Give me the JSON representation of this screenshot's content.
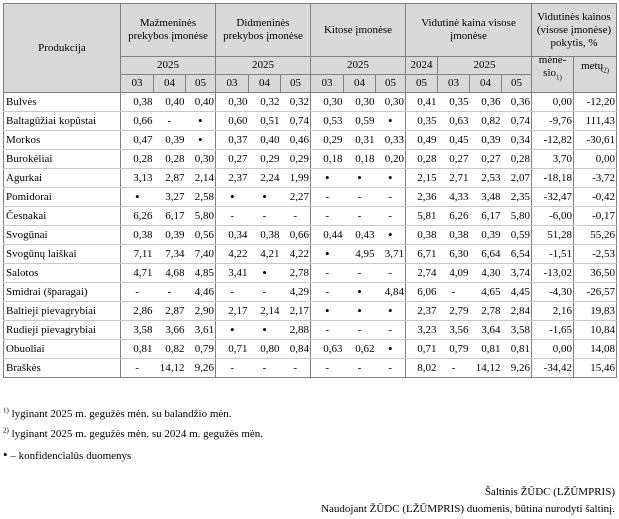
{
  "header": {
    "product": "Produkcija",
    "groups": [
      "Mažmeninės prekybos įmonėse",
      "Didmeninės prekybos įmonėse",
      "Kitose įmonėse",
      "Vidutinė kaina visose įmonėse",
      "Vidutinės kainos (visose įmonėse) pokytis, %"
    ],
    "years": [
      "2025",
      "2025",
      "2025",
      "2024",
      "2025"
    ],
    "months": [
      "03",
      "04",
      "05",
      "03",
      "04",
      "05",
      "03",
      "04",
      "05",
      "05",
      "03",
      "04",
      "05"
    ],
    "change_month": "mėne-sio",
    "change_month_sup": "1)",
    "change_year": "metų",
    "change_year_sup": "2)"
  },
  "rows": [
    {
      "name": "Bulvės",
      "v": [
        "0,38",
        "0,40",
        "0,40",
        "0,30",
        "0,32",
        "0,32",
        "0,30",
        "0,30",
        "0,30",
        "0,41",
        "0,35",
        "0,36",
        "0,36",
        "0,00",
        "-12,20"
      ]
    },
    {
      "name": "Baltagūžiai kopūstai",
      "v": [
        "0,66",
        "-",
        "•",
        "0,60",
        "0,51",
        "0,74",
        "0,53",
        "0,59",
        "•",
        "0,35",
        "0,63",
        "0,82",
        "0,74",
        "-9,76",
        "111,43"
      ]
    },
    {
      "name": "Morkos",
      "v": [
        "0,47",
        "0,39",
        "•",
        "0,37",
        "0,40",
        "0,46",
        "0,29",
        "0,31",
        "0,33",
        "0,49",
        "0,45",
        "0,39",
        "0,34",
        "-12,82",
        "-30,61"
      ]
    },
    {
      "name": "Burokėliai",
      "v": [
        "0,28",
        "0,28",
        "0,30",
        "0,27",
        "0,29",
        "0,29",
        "0,18",
        "0,18",
        "0,20",
        "0,28",
        "0,27",
        "0,27",
        "0,28",
        "3,70",
        "0,00"
      ]
    },
    {
      "name": "Agurkai",
      "v": [
        "3,13",
        "2,87",
        "2,14",
        "2,37",
        "2,24",
        "1,99",
        "•",
        "•",
        "•",
        "2,15",
        "2,71",
        "2,53",
        "2,07",
        "-18,18",
        "-3,72"
      ]
    },
    {
      "name": "Pomidorai",
      "v": [
        "•",
        "3,27",
        "2,58",
        "•",
        "•",
        "2,27",
        "-",
        "-",
        "-",
        "2,36",
        "4,33",
        "3,48",
        "2,35",
        "-32,47",
        "-0,42"
      ]
    },
    {
      "name": "Česnakai",
      "v": [
        "6,26",
        "6,17",
        "5,80",
        "-",
        "-",
        "-",
        "-",
        "-",
        "-",
        "5,81",
        "6,26",
        "6,17",
        "5,80",
        "-6,00",
        "-0,17"
      ]
    },
    {
      "name": "Svogūnai",
      "v": [
        "0,38",
        "0,39",
        "0,56",
        "0,34",
        "0,38",
        "0,66",
        "0,44",
        "0,43",
        "•",
        "0,38",
        "0,38",
        "0,39",
        "0,59",
        "51,28",
        "55,26"
      ]
    },
    {
      "name": "Svogūnų laiškai",
      "v": [
        "7,11",
        "7,34",
        "7,40",
        "4,22",
        "4,21",
        "4,22",
        "•",
        "4,95",
        "3,71",
        "6,71",
        "6,30",
        "6,64",
        "6,54",
        "-1,51",
        "-2,53"
      ]
    },
    {
      "name": "Salotos",
      "v": [
        "4,71",
        "4,68",
        "4,85",
        "3,41",
        "•",
        "2,78",
        "-",
        "-",
        "-",
        "2,74",
        "4,09",
        "4,30",
        "3,74",
        "-13,02",
        "36,50"
      ]
    },
    {
      "name": "Smidrai (šparagai)",
      "v": [
        "-",
        "-",
        "4,46",
        "-",
        "-",
        "4,29",
        "-",
        "•",
        "4,84",
        "6,06",
        "-",
        "4,65",
        "4,45",
        "-4,30",
        "-26,57"
      ]
    },
    {
      "name": "Baltieji pievagrybiai",
      "v": [
        "2,86",
        "2,87",
        "2,90",
        "2,17",
        "2,14",
        "2,17",
        "•",
        "•",
        "•",
        "2,37",
        "2,79",
        "2,78",
        "2,84",
        "2,16",
        "19,83"
      ]
    },
    {
      "name": "Rudieji pievagrybiai",
      "v": [
        "3,58",
        "3,66",
        "3,61",
        "•",
        "•",
        "2,88",
        "-",
        "-",
        "-",
        "3,23",
        "3,56",
        "3,64",
        "3,58",
        "-1,65",
        "10,84"
      ]
    },
    {
      "name": "Obuoliai",
      "v": [
        "0,81",
        "0,82",
        "0,79",
        "0,71",
        "0,80",
        "0,84",
        "0,63",
        "0,62",
        "•",
        "0,71",
        "0,79",
        "0,81",
        "0,81",
        "0,00",
        "14,08"
      ]
    },
    {
      "name": "Braškės",
      "v": [
        "-",
        "14,12",
        "9,26",
        "-",
        "-",
        "-",
        "-",
        "-",
        "-",
        "8,02",
        "-",
        "14,12",
        "9,26",
        "-34,42",
        "15,46"
      ]
    }
  ],
  "notes": {
    "n1_sup": "1)",
    "n1": "lyginant 2025 m. gegužės mėn. su balandžio mėn.",
    "n2_sup": "2)",
    "n2": "lyginant 2025 m. gegužės mėn. su 2024 m. gegužės mėn.",
    "n3_sym": "•",
    "n3": "– konfidencialūs duomenys"
  },
  "source": {
    "line1": "Šaltinis ŽŪDC (LŽŪMPRIS)",
    "line2": "Naudojant ŽŪDC (LŽŪMPRIS) duomenis, būtina nurodyti šaltinį."
  }
}
